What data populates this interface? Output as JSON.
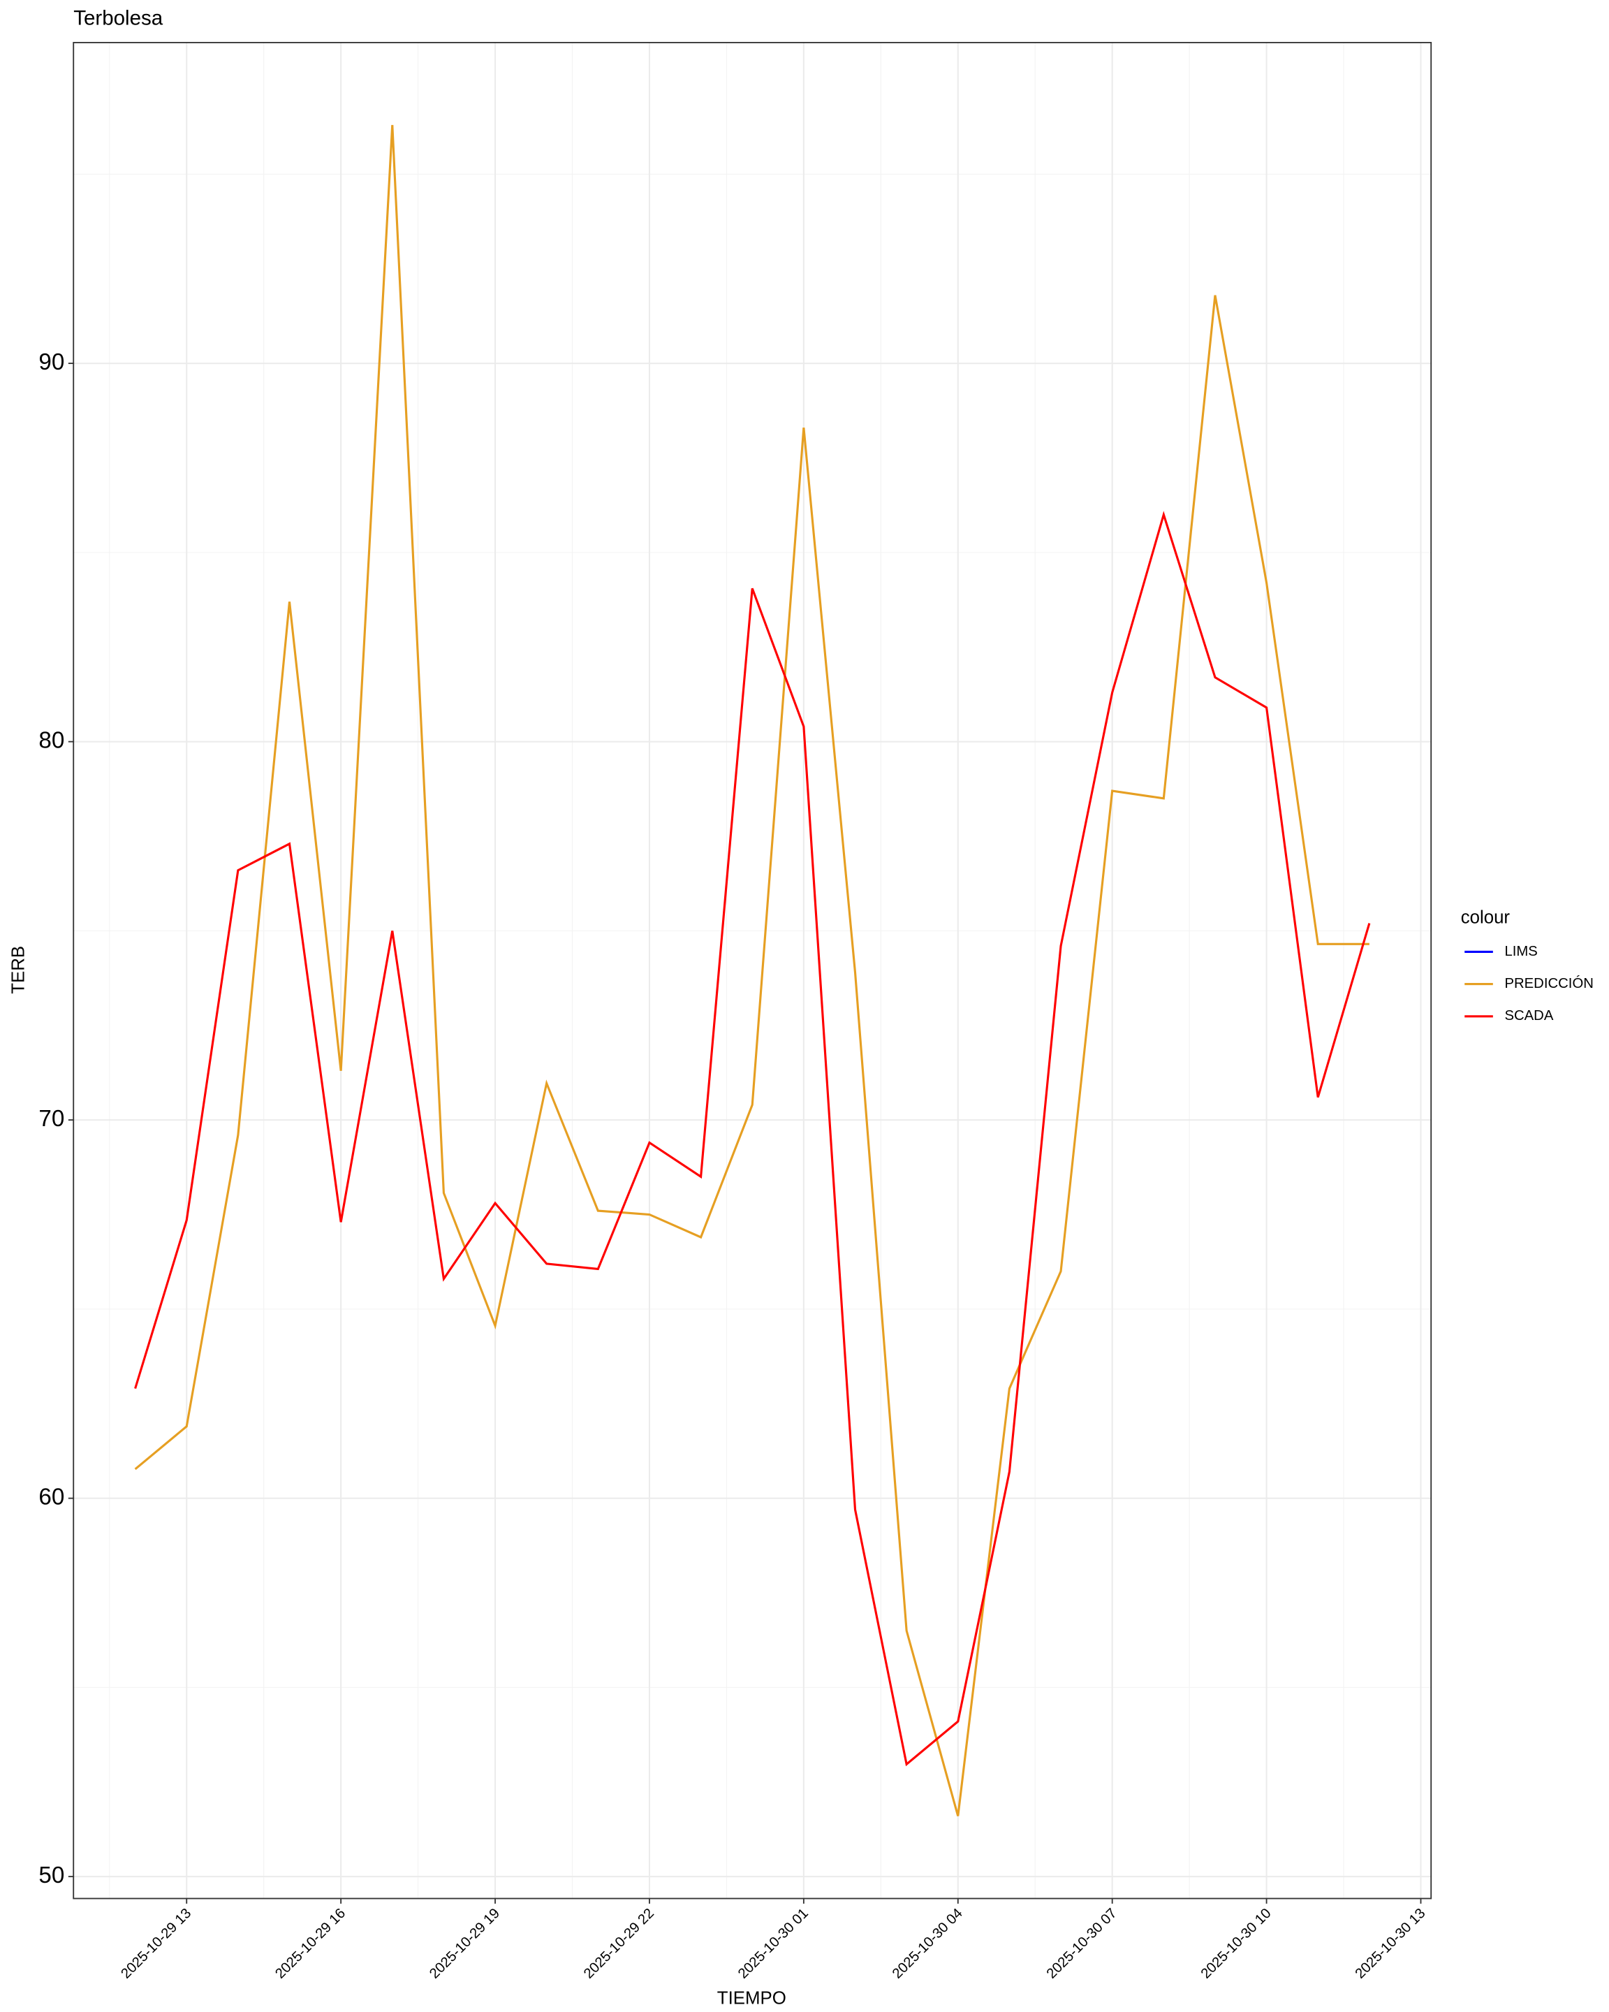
{
  "chart_data": {
    "type": "line",
    "title": "Terbolesa",
    "x_label": "TIEMPO",
    "y_label": "TERB",
    "legend_title": "colour",
    "legend": "right",
    "x": [
      "2025-10-29 12",
      "2025-10-29 13",
      "2025-10-29 14",
      "2025-10-29 15",
      "2025-10-29 16",
      "2025-10-29 17",
      "2025-10-29 18",
      "2025-10-29 19",
      "2025-10-29 20",
      "2025-10-29 21",
      "2025-10-29 22",
      "2025-10-29 23",
      "2025-10-30 00",
      "2025-10-30 01",
      "2025-10-30 02",
      "2025-10-30 03",
      "2025-10-30 04",
      "2025-10-30 05",
      "2025-10-30 06",
      "2025-10-30 07",
      "2025-10-30 08",
      "2025-10-30 09",
      "2025-10-30 10",
      "2025-10-30 11",
      "2025-10-30 12"
    ],
    "xticks": [
      "2025-10-29 13",
      "2025-10-29 16",
      "2025-10-29 19",
      "2025-10-29 22",
      "2025-10-30 01",
      "2025-10-30 04",
      "2025-10-30 07",
      "2025-10-30 10",
      "2025-10-30 13"
    ],
    "ylim": [
      49.42,
      98.48
    ],
    "yticks": [
      50,
      60,
      70,
      80,
      90
    ],
    "grid": true,
    "series": [
      {
        "name": "LIMS",
        "color": "#0000ff",
        "values": [
          null,
          null,
          null,
          null,
          null,
          null,
          null,
          null,
          null,
          null,
          null,
          null,
          null,
          null,
          null,
          null,
          null,
          null,
          null,
          null,
          null,
          null,
          null,
          null,
          null
        ]
      },
      {
        "name": "PREDICCIÓN",
        "color": "#e69f22",
        "values": [
          60.77,
          61.9,
          69.6,
          83.7,
          71.3,
          96.3,
          68.07,
          64.56,
          70.97,
          67.6,
          67.5,
          66.9,
          70.4,
          88.3,
          73.9,
          56.5,
          51.6,
          62.9,
          66.0,
          78.7,
          78.5,
          91.8,
          84.2,
          74.65,
          74.65
        ]
      },
      {
        "name": "SCADA",
        "color": "#ff0000",
        "values": [
          62.9,
          67.35,
          76.6,
          77.3,
          67.3,
          75.0,
          65.8,
          67.8,
          66.2,
          66.06,
          69.4,
          68.5,
          84.05,
          80.4,
          59.7,
          52.97,
          54.1,
          60.7,
          74.6,
          81.3,
          86.0,
          81.7,
          80.9,
          70.6,
          75.2
        ]
      }
    ]
  }
}
